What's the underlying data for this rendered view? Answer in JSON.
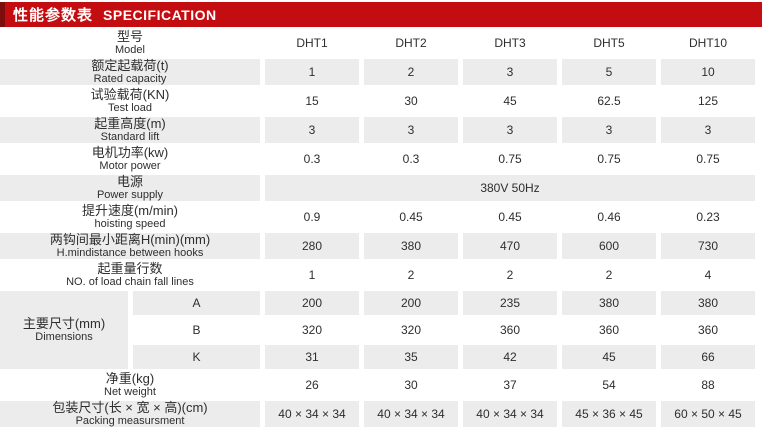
{
  "colors": {
    "brand_red": "#c40d11",
    "brand_dark_red": "#7f0c0c",
    "shade_gray": "#ececec"
  },
  "header": {
    "title_zh": "性能参数表",
    "title_en": "SPECIFICATION"
  },
  "table": {
    "model_label": {
      "zh": "型号",
      "en": "Model"
    },
    "columns": [
      "DHT1",
      "DHT2",
      "DHT3",
      "DHT5",
      "DHT10"
    ],
    "rows": [
      {
        "type": "normal",
        "zh": "额定起载荷(t)",
        "en": "Rated capacity",
        "shaded": true,
        "values": [
          "1",
          "2",
          "3",
          "5",
          "10"
        ]
      },
      {
        "type": "normal",
        "zh": "试验载荷(KN)",
        "en": "Test load",
        "shaded": false,
        "values": [
          "15",
          "30",
          "45",
          "62.5",
          "125"
        ]
      },
      {
        "type": "normal",
        "zh": "起重高度(m)",
        "en": "Standard lift",
        "shaded": true,
        "values": [
          "3",
          "3",
          "3",
          "3",
          "3"
        ]
      },
      {
        "type": "normal",
        "zh": "电机功率(kw)",
        "en": "Motor power",
        "shaded": false,
        "values": [
          "0.3",
          "0.3",
          "0.75",
          "0.75",
          "0.75"
        ]
      },
      {
        "type": "span",
        "zh": "电源",
        "en": "Power supply",
        "shaded": true,
        "value": "380V  50Hz"
      },
      {
        "type": "normal",
        "zh": "提升速度(m/min)",
        "en": "hoisting speed",
        "shaded": false,
        "values": [
          "0.9",
          "0.45",
          "0.45",
          "0.46",
          "0.23"
        ]
      },
      {
        "type": "normal",
        "zh": "两钩间最小距离H(min)(mm)",
        "en": "H.mindistance between hooks",
        "shaded": true,
        "values": [
          "280",
          "380",
          "470",
          "600",
          "730"
        ]
      },
      {
        "type": "normal",
        "zh": "起重量行数",
        "en": "NO. of load chain fall lines",
        "shaded": false,
        "values": [
          "1",
          "2",
          "2",
          "2",
          "4"
        ]
      },
      {
        "type": "dim-first",
        "group_zh": "主要尺寸(mm)",
        "group_en": "Dimensions",
        "key": "A",
        "shaded": true,
        "values": [
          "200",
          "200",
          "235",
          "380",
          "380"
        ]
      },
      {
        "type": "dim",
        "key": "B",
        "shaded": false,
        "values": [
          "320",
          "320",
          "360",
          "360",
          "360"
        ]
      },
      {
        "type": "dim",
        "key": "K",
        "shaded": true,
        "values": [
          "31",
          "35",
          "42",
          "45",
          "66"
        ]
      },
      {
        "type": "normal",
        "zh": "净重(kg)",
        "en": "Net weight",
        "shaded": false,
        "values": [
          "26",
          "30",
          "37",
          "54",
          "88"
        ]
      },
      {
        "type": "normal",
        "zh": "包装尺寸(长 × 宽 × 高)(cm)",
        "en": "Packing measursment",
        "shaded": true,
        "values": [
          "40 × 34 × 34",
          "40 × 34 × 34",
          "40 × 34 × 34",
          "45 × 36 × 45",
          "60 × 50 × 45"
        ]
      }
    ]
  }
}
